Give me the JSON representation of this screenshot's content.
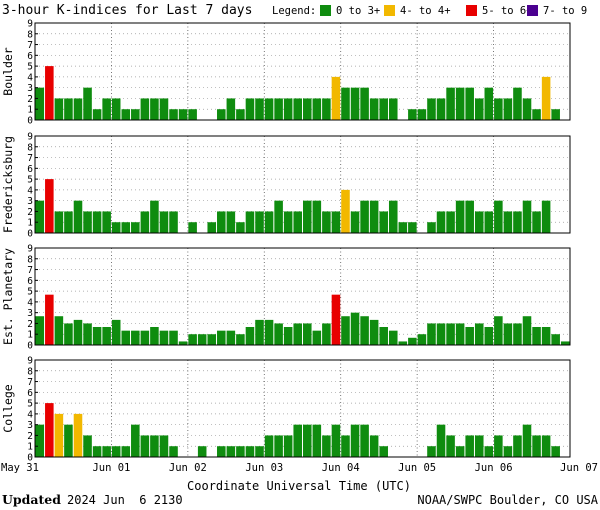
{
  "header": {
    "title": "3-hour K-indices for Last 7 days",
    "legend_label": "Legend:",
    "legend": [
      {
        "label": "0 to 3+",
        "color": "#0f8c0f"
      },
      {
        "label": "4- to 4+",
        "color": "#f2b800"
      },
      {
        "label": "5- to 6+",
        "color": "#e80000"
      },
      {
        "label": "7- to 9",
        "color": "#4b0090"
      }
    ]
  },
  "footer": {
    "updated_label": "Updated",
    "updated_value": "2024 Jun  6 2130",
    "credit": "NOAA/SWPC Boulder, CO USA"
  },
  "chart_data": {
    "type": "bar",
    "xlabel": "Coordinate Universal Time (UTC)",
    "x_ticks": [
      "May 31",
      "Jun 01",
      "Jun 02",
      "Jun 03",
      "Jun 04",
      "Jun 05",
      "Jun 06",
      "Jun 07"
    ],
    "ylim": [
      0,
      9
    ],
    "y_ticks": [
      "0",
      "1",
      "2",
      "3",
      "4",
      "5",
      "6",
      "7",
      "8",
      "9"
    ],
    "grid": true,
    "colors": {
      "quiet": "#0f8c0f",
      "active": "#f2b800",
      "storm": "#e80000",
      "severe": "#4b0090"
    },
    "panels": [
      {
        "name": "Boulder",
        "values": [
          3,
          5,
          2,
          2,
          2,
          3,
          1,
          2,
          2,
          1,
          1,
          2,
          2,
          2,
          1,
          1,
          1,
          0,
          0,
          1,
          2,
          1,
          2,
          2,
          2,
          2,
          2,
          2,
          2,
          2,
          2,
          4,
          3,
          3,
          3,
          2,
          2,
          2,
          0,
          1,
          1,
          2,
          2,
          3,
          3,
          3,
          2,
          3,
          2,
          2,
          3,
          2,
          1,
          4,
          1,
          0
        ]
      },
      {
        "name": "Fredericksburg",
        "values": [
          3,
          5,
          2,
          2,
          3,
          2,
          2,
          2,
          1,
          1,
          1,
          2,
          3,
          2,
          2,
          0,
          1,
          0,
          1,
          2,
          2,
          1,
          2,
          2,
          2,
          3,
          2,
          2,
          3,
          3,
          2,
          2,
          4,
          2,
          3,
          3,
          2,
          3,
          1,
          1,
          0,
          1,
          2,
          2,
          3,
          3,
          2,
          2,
          3,
          2,
          2,
          3,
          2,
          3,
          0,
          0
        ]
      },
      {
        "name": "Est. Planetary",
        "values": [
          2.67,
          4.67,
          2.67,
          2,
          2.33,
          2,
          1.67,
          1.67,
          2.33,
          1.33,
          1.33,
          1.33,
          1.67,
          1.33,
          1.33,
          0.33,
          1,
          1,
          1,
          1.33,
          1.33,
          1,
          1.67,
          2.33,
          2.33,
          2,
          1.67,
          2,
          2,
          1.33,
          2,
          4.67,
          2.67,
          3,
          2.67,
          2.33,
          1.67,
          1.33,
          0.33,
          0.67,
          1,
          2,
          2,
          2,
          2,
          1.67,
          2,
          1.67,
          2.67,
          2,
          2,
          2.67,
          1.67,
          1.67,
          1,
          0.33
        ]
      },
      {
        "name": "College",
        "values": [
          3,
          5,
          4,
          3,
          4,
          2,
          1,
          1,
          1,
          1,
          3,
          2,
          2,
          2,
          1,
          0,
          0,
          1,
          0,
          1,
          1,
          1,
          1,
          1,
          2,
          2,
          2,
          3,
          3,
          3,
          2,
          3,
          2,
          3,
          3,
          2,
          1,
          0,
          0,
          0,
          0,
          1,
          3,
          2,
          1,
          2,
          2,
          1,
          2,
          1,
          2,
          3,
          2,
          2,
          1,
          0
        ]
      }
    ]
  }
}
